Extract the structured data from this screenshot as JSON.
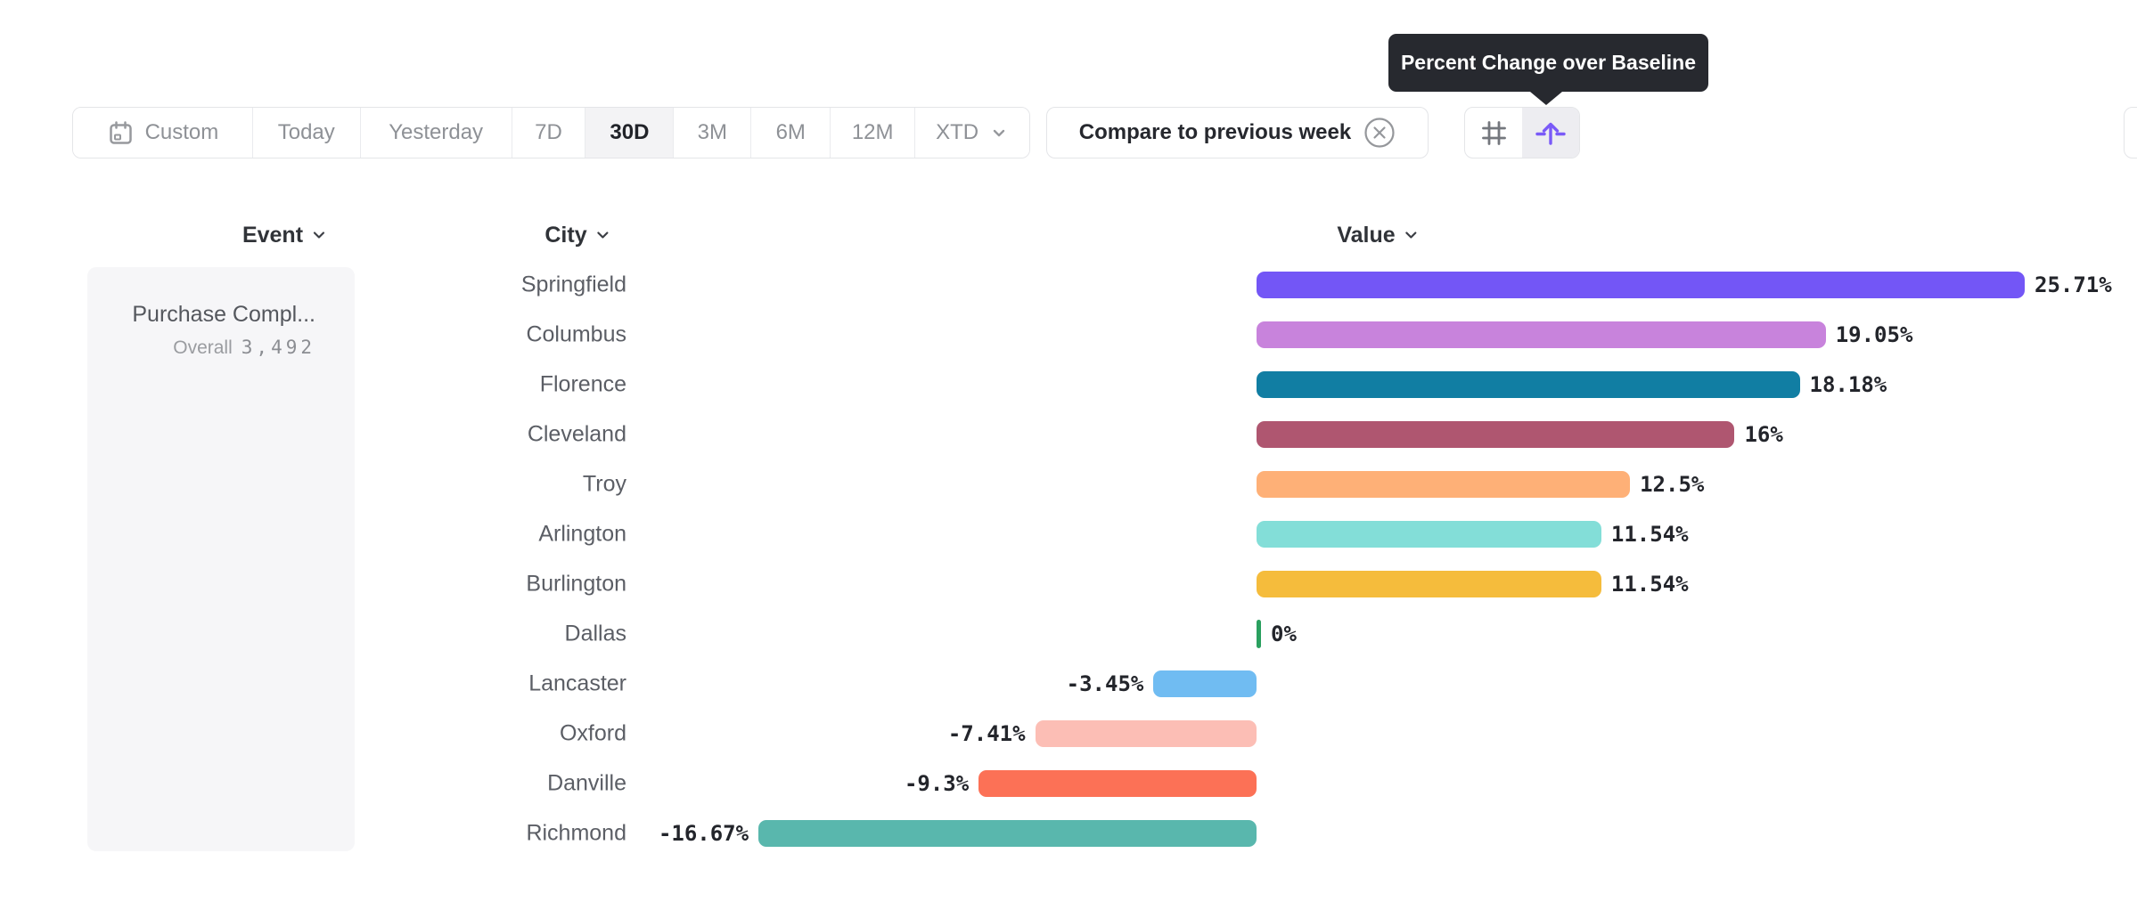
{
  "tooltip": {
    "text": "Percent Change over Baseline",
    "bg_color": "#27292f"
  },
  "toolbar": {
    "date_ranges": [
      {
        "label": "Custom",
        "icon": "calendar-icon",
        "selected": false
      },
      {
        "label": "Today",
        "selected": false
      },
      {
        "label": "Yesterday",
        "selected": false
      },
      {
        "label": "7D",
        "selected": false
      },
      {
        "label": "30D",
        "selected": true
      },
      {
        "label": "3M",
        "selected": false
      },
      {
        "label": "6M",
        "selected": false
      },
      {
        "label": "12M",
        "selected": false
      },
      {
        "label": "XTD",
        "icon": "chevron-down-icon",
        "selected": false
      }
    ],
    "compare_button": {
      "label": "Compare to previous week",
      "icon": "close-circle-icon"
    },
    "view_toggle": {
      "options": [
        {
          "icon": "grid-icon",
          "selected": false
        },
        {
          "icon": "percent-change-baseline-icon",
          "selected": true
        }
      ],
      "accent_color": "#7a5af8"
    }
  },
  "columns": {
    "event": {
      "label": "Event",
      "icon": "chevron-down-icon"
    },
    "city": {
      "label": "City",
      "icon": "chevron-down-icon"
    },
    "value": {
      "label": "Value",
      "icon": "chevron-down-icon"
    }
  },
  "event_panel": {
    "event_name": "Purchase Compl...",
    "overall_label": "Overall",
    "overall_value": "3,492"
  },
  "chart_data": {
    "type": "bar",
    "orientation": "horizontal",
    "title": "",
    "category_axis_label": "City",
    "value_axis_label": "Value",
    "unit": "%",
    "categories": [
      "Springfield",
      "Columbus",
      "Florence",
      "Cleveland",
      "Troy",
      "Arlington",
      "Burlington",
      "Dallas",
      "Lancaster",
      "Oxford",
      "Danville",
      "Richmond"
    ],
    "values": [
      25.71,
      19.05,
      18.18,
      16,
      12.5,
      11.54,
      11.54,
      0,
      -3.45,
      -7.41,
      -9.3,
      -16.67
    ],
    "labels": [
      "25.71%",
      "19.05%",
      "18.18%",
      "16%",
      "12.5%",
      "11.54%",
      "11.54%",
      "0%",
      "-3.45%",
      "-7.41%",
      "-9.3%",
      "-16.67%"
    ],
    "colors": [
      "#7356F6",
      "#C883DC",
      "#117EA3",
      "#AF5670",
      "#FEB077",
      "#83DED8",
      "#F5BC3C",
      "#2AA05F",
      "#70BCF2",
      "#FCBEB5",
      "#FC7156",
      "#59B7AD"
    ],
    "xlim": [
      -16.67,
      25.71
    ],
    "baseline": 0,
    "grid": false,
    "legend": "none"
  }
}
